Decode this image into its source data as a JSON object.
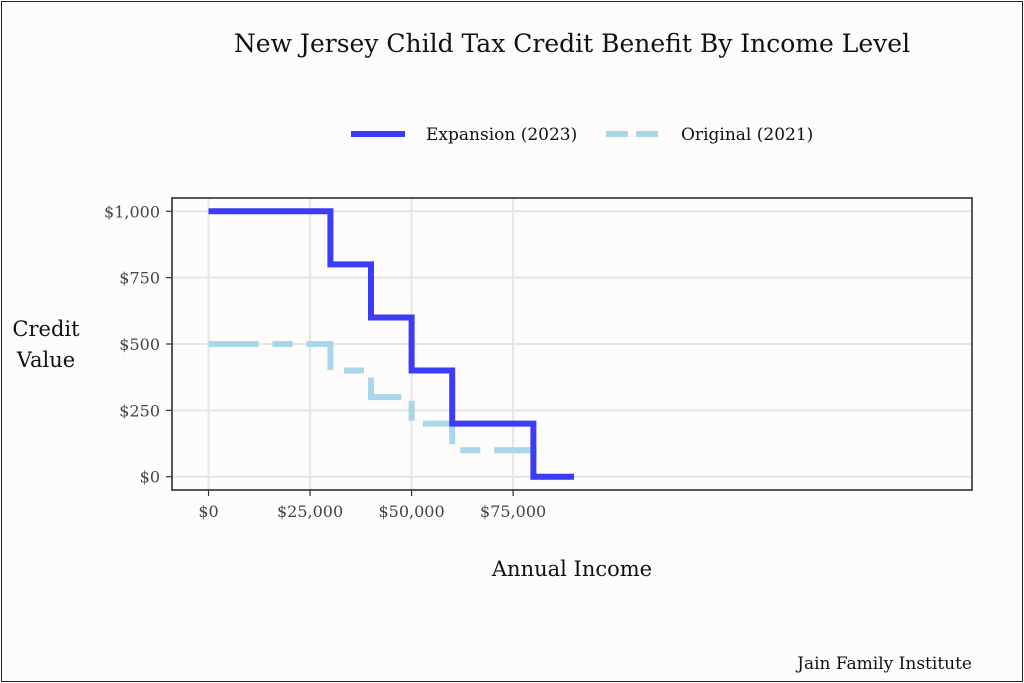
{
  "chart_data": {
    "type": "line",
    "title": "New Jersey Child Tax Credit Benefit By Income Level",
    "xlabel": "Annual Income",
    "ylabel_lines": [
      "Credit",
      "Value"
    ],
    "xlim": [
      -9000,
      188000
    ],
    "ylim": [
      -50,
      1050
    ],
    "x_ticks": [
      0,
      25000,
      50000,
      75000
    ],
    "x_tick_labels": [
      "$0",
      "$25,000",
      "$50,000",
      "$75,000"
    ],
    "y_ticks": [
      0,
      250,
      500,
      750,
      1000
    ],
    "y_tick_labels": [
      "$0",
      "$250",
      "$500",
      "$750",
      "$1,000"
    ],
    "grid": true,
    "legend_position": "top",
    "series": [
      {
        "name": "Expansion (2023)",
        "color": "#3a3cf7",
        "style": "solid",
        "points": [
          [
            0,
            1000
          ],
          [
            30000,
            1000
          ],
          [
            30000,
            800
          ],
          [
            40000,
            800
          ],
          [
            40000,
            600
          ],
          [
            50000,
            600
          ],
          [
            50000,
            400
          ],
          [
            60000,
            400
          ],
          [
            60000,
            200
          ],
          [
            80000,
            200
          ],
          [
            80000,
            0
          ],
          [
            90000,
            0
          ]
        ]
      },
      {
        "name": "Original (2021)",
        "color": "#a9d6e8",
        "style": "dashed",
        "points": [
          [
            0,
            500
          ],
          [
            30000,
            500
          ],
          [
            30000,
            400
          ],
          [
            40000,
            400
          ],
          [
            40000,
            300
          ],
          [
            50000,
            300
          ],
          [
            50000,
            200
          ],
          [
            60000,
            200
          ],
          [
            60000,
            100
          ],
          [
            80000,
            100
          ],
          [
            80000,
            0
          ],
          [
            90000,
            0
          ]
        ]
      }
    ],
    "caption": "Jain Family Institute"
  }
}
